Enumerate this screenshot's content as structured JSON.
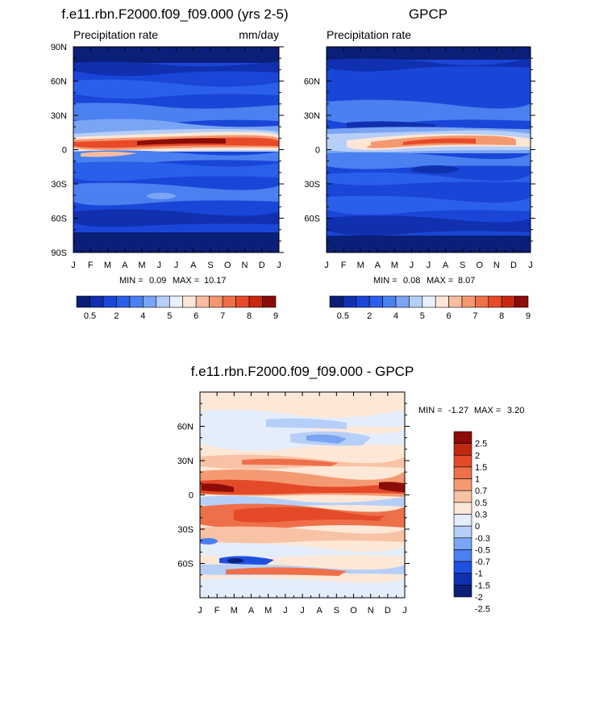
{
  "palette_abs": [
    "#0a1f78",
    "#1030b0",
    "#1a46d8",
    "#2a5fea",
    "#4a80f0",
    "#7aa4f4",
    "#b6cff8",
    "#e8f0fc",
    "#fde6d6",
    "#f8bca0",
    "#f49870",
    "#ee7048",
    "#e84a28",
    "#c82810",
    "#8c0c08"
  ],
  "palette_diff": [
    "#0a1f78",
    "#1030b0",
    "#1e50e0",
    "#4a80f0",
    "#7aa4f4",
    "#b6cff8",
    "#e4edfb",
    "#fde8d8",
    "#f8c2a4",
    "#f49a72",
    "#ee704a",
    "#e44a28",
    "#c02810",
    "#8c0c08"
  ],
  "chart_data": [
    {
      "type": "contour",
      "title": "f.e11.rbn.F2000.f09_f09.000 (yrs 2-5)",
      "left_label": "Precipitation rate",
      "right_label": "mm/day",
      "x_ticks": [
        "J",
        "F",
        "M",
        "A",
        "M",
        "J",
        "J",
        "A",
        "S",
        "O",
        "N",
        "D",
        "J"
      ],
      "y_ticks": [
        "90N",
        "60N",
        "30N",
        "0",
        "30S",
        "60S",
        "90S"
      ],
      "min_label": "MIN =",
      "min_value": "0.09",
      "max_label": "MAX =",
      "max_value": "10.17",
      "colorbar_labels": [
        "0.5",
        "2",
        "4",
        "5",
        "6",
        "7",
        "8",
        "9"
      ],
      "levels": [
        0.5,
        1,
        2,
        3,
        4,
        4.5,
        5,
        5.5,
        6,
        6.5,
        7,
        7.5,
        8,
        9
      ]
    },
    {
      "type": "contour",
      "title": "GPCP",
      "left_label": "Precipitation rate",
      "x_ticks": [
        "J",
        "F",
        "M",
        "A",
        "M",
        "J",
        "J",
        "A",
        "S",
        "O",
        "N",
        "D",
        "J"
      ],
      "y_ticks": [
        "60N",
        "30N",
        "0",
        "30S",
        "60S"
      ],
      "min_label": "MIN =",
      "min_value": "0.08",
      "max_label": "MAX =",
      "max_value": "8.07",
      "colorbar_labels": [
        "0.5",
        "2",
        "4",
        "5",
        "6",
        "7",
        "8",
        "9"
      ],
      "levels": [
        0.5,
        1,
        2,
        3,
        4,
        4.5,
        5,
        5.5,
        6,
        6.5,
        7,
        7.5,
        8,
        9
      ]
    },
    {
      "type": "contour",
      "title": "f.e11.rbn.F2000.f09_f09.000 - GPCP",
      "x_ticks": [
        "J",
        "F",
        "M",
        "A",
        "M",
        "J",
        "J",
        "A",
        "S",
        "O",
        "N",
        "D",
        "J"
      ],
      "y_ticks": [
        "60N",
        "30N",
        "0",
        "30S",
        "60S"
      ],
      "min_label": "MIN =",
      "min_value": "-1.27",
      "max_label": "MAX =",
      "max_value": "3.20",
      "colorbar_labels": [
        "2.5",
        "2",
        "1.5",
        "1",
        "0.7",
        "0.5",
        "0.3",
        "0",
        "-0.3",
        "-0.5",
        "-0.7",
        "-1",
        "-1.5",
        "-2",
        "-2.5"
      ],
      "levels": [
        -2.5,
        -2,
        -1.5,
        -1,
        -0.7,
        -0.5,
        -0.3,
        0,
        0.3,
        0.5,
        0.7,
        1,
        1.5,
        2,
        2.5
      ]
    }
  ]
}
